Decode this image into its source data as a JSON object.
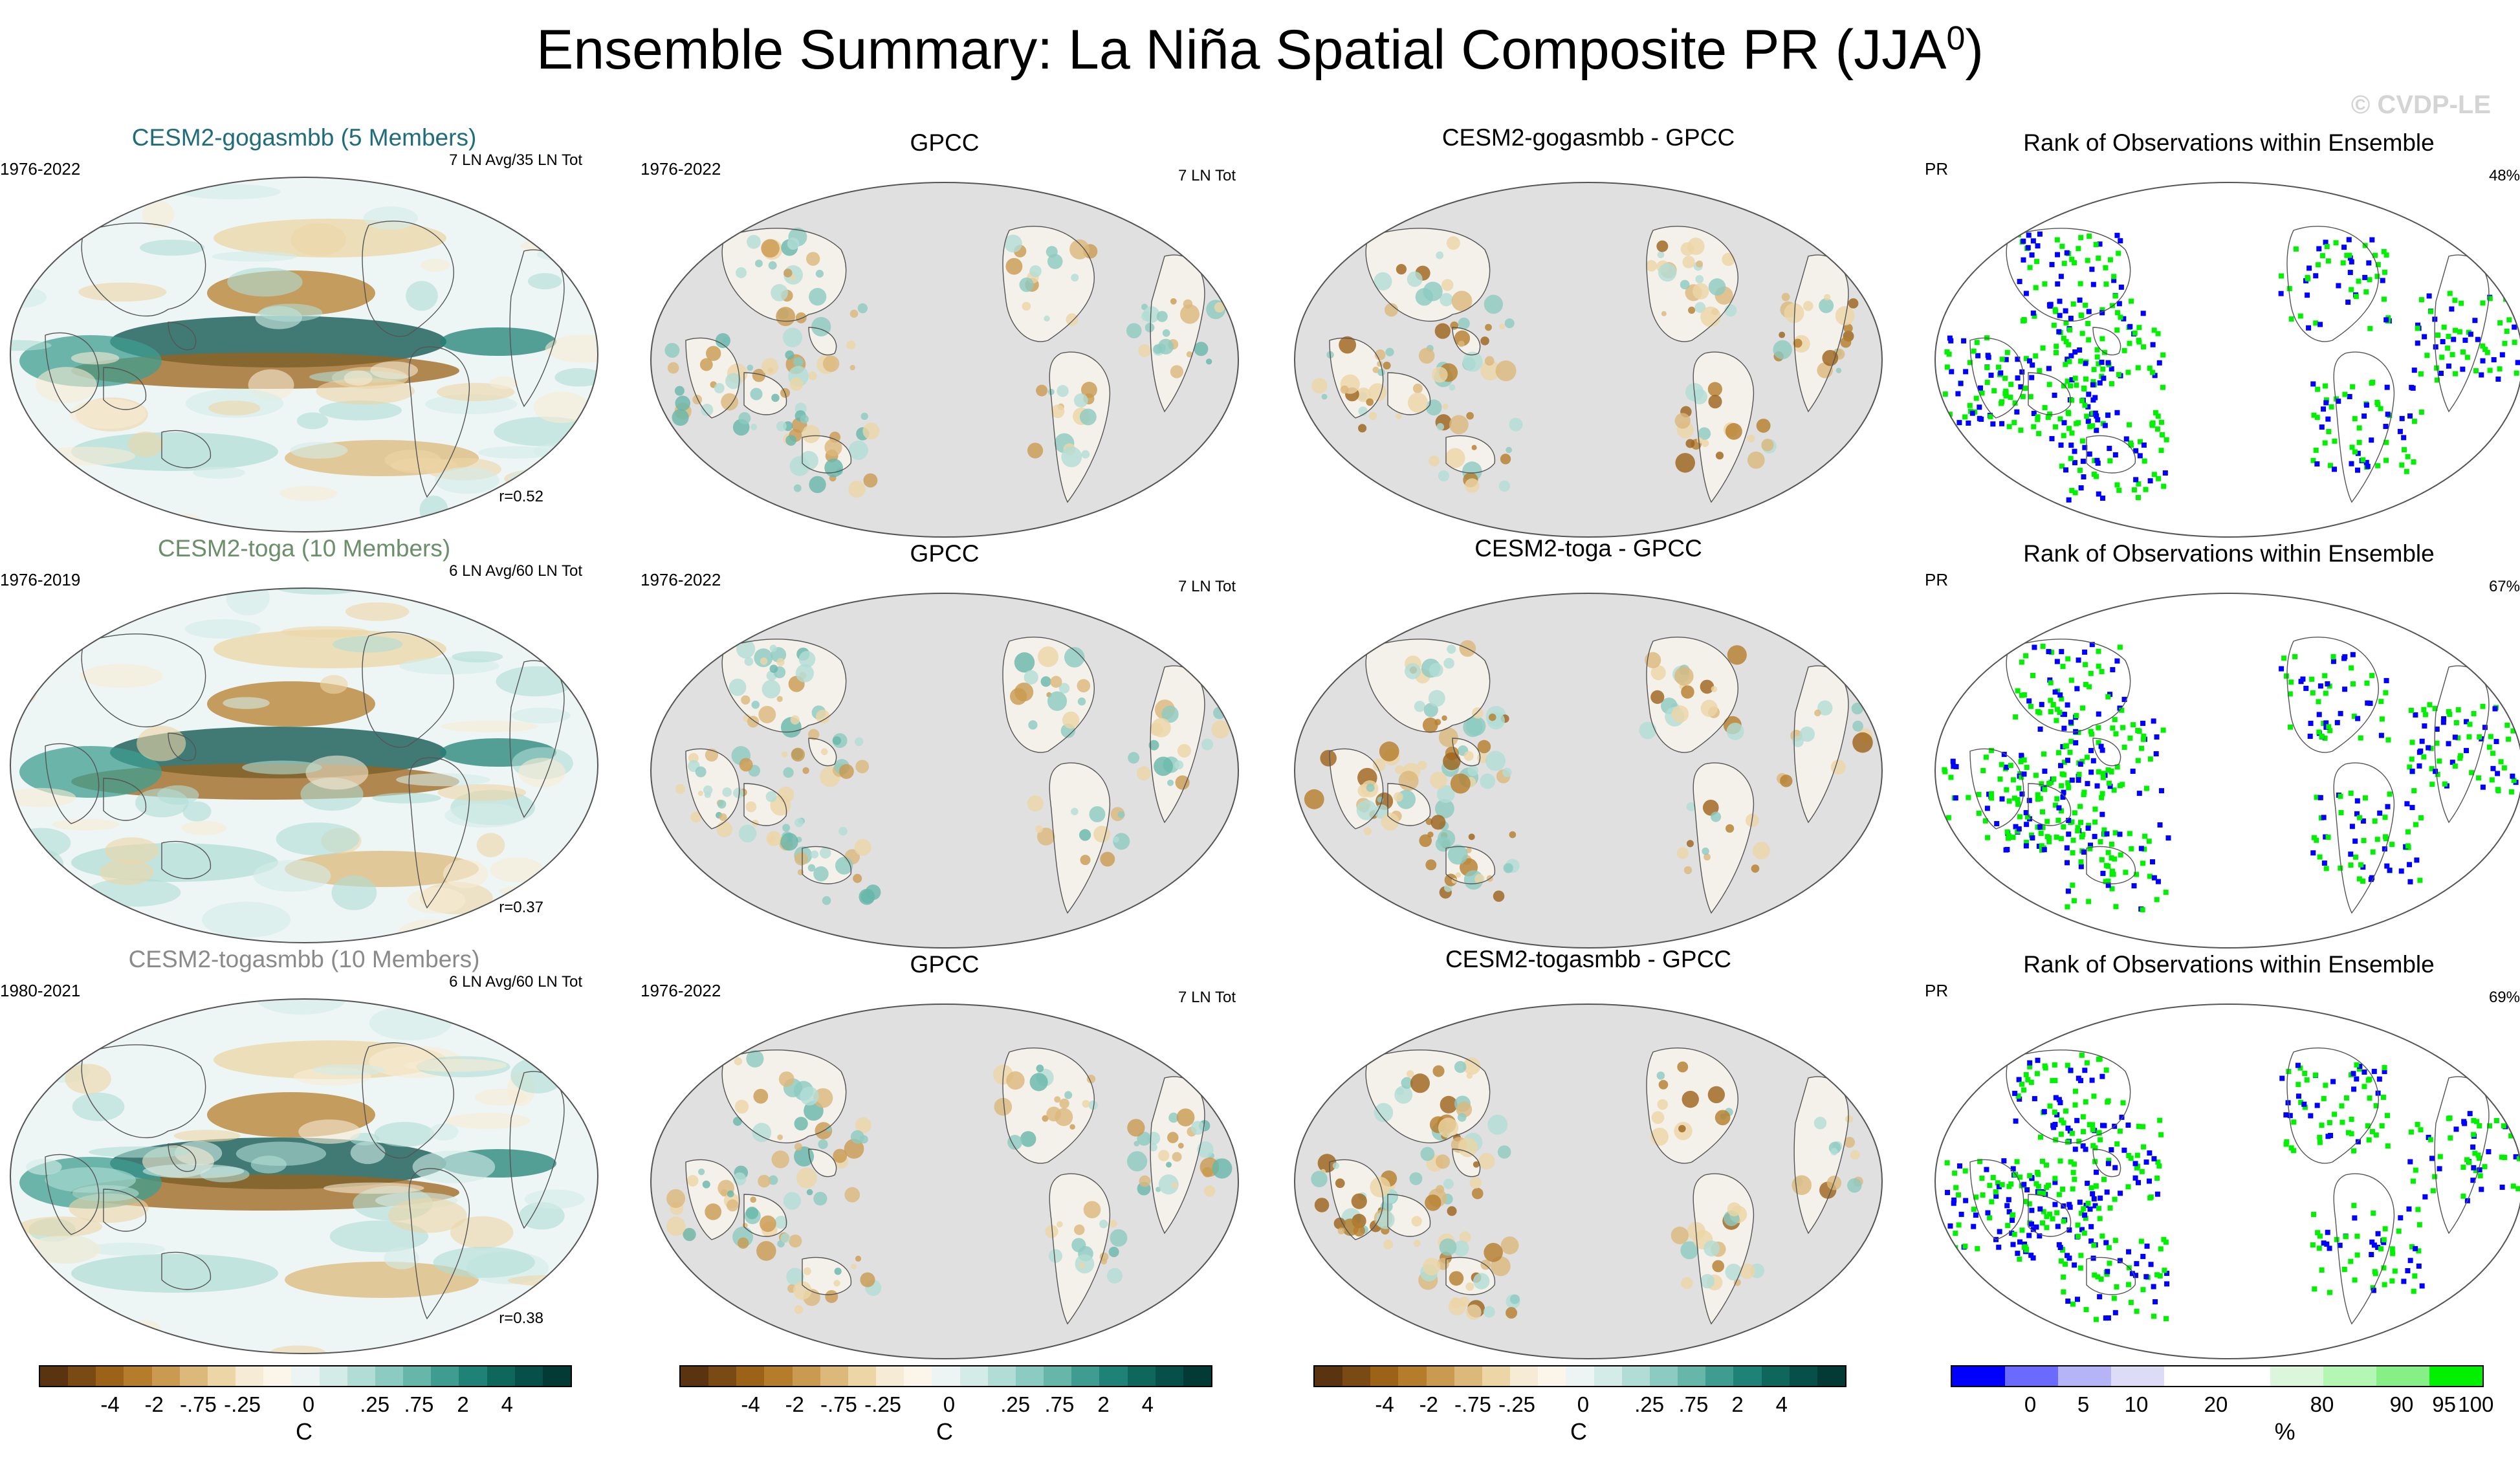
{
  "title": "Ensemble Summary: La Niña Spatial Composite PR (JJA",
  "title_superscript": "0",
  "title_close": ")",
  "credit": "© CVDP-LE",
  "colors": {
    "model_1_title": "#1f6d7a",
    "model_2_title": "#6a8f6a",
    "model_3_title": "#8a8a8a",
    "land_missing": "#e0e0e0",
    "rank_low": "#0000ff",
    "rank_high": "#00f000"
  },
  "rows": [
    {
      "model": {
        "title": "CESM2-gogasmbb (5 Members)",
        "period": "1976-2022",
        "count": "7 LN Avg/35 LN Tot",
        "corr": "r=0.52"
      },
      "obs": {
        "title": "GPCC",
        "period": "1976-2022",
        "count": "7 LN Tot"
      },
      "diff": {
        "title": "CESM2-gogasmbb - GPCC"
      },
      "rank": {
        "title": "Rank of Observations within Ensemble",
        "var": "PR",
        "pct": "48%"
      }
    },
    {
      "model": {
        "title": "CESM2-toga (10 Members)",
        "period": "1976-2019",
        "count": "6 LN Avg/60 LN Tot",
        "corr": "r=0.37"
      },
      "obs": {
        "title": "GPCC",
        "period": "1976-2022",
        "count": "7 LN Tot"
      },
      "diff": {
        "title": "CESM2-toga - GPCC"
      },
      "rank": {
        "title": "Rank of Observations within Ensemble",
        "var": "PR",
        "pct": "67%"
      }
    },
    {
      "model": {
        "title": "CESM2-togasmbb (10 Members)",
        "period": "1980-2021",
        "count": "6 LN Avg/60 LN Tot",
        "corr": "r=0.38"
      },
      "obs": {
        "title": "GPCC",
        "period": "1976-2022",
        "count": "7 LN Tot"
      },
      "diff": {
        "title": "CESM2-togasmbb - GPCC"
      },
      "rank": {
        "title": "Rank of Observations within Ensemble",
        "var": "PR",
        "pct": "69%"
      }
    }
  ],
  "chart_data": {
    "type": "heatmap",
    "title": "Ensemble Summary: La Niña Spatial Composite PR (JJA0)",
    "projection": "global ellipse, Pacific-centred",
    "colorbars": [
      {
        "unit": "C",
        "ticks": [
          "-4",
          "-2",
          "-.75",
          "-.25",
          "0",
          ".25",
          ".75",
          "2",
          "4"
        ],
        "colors": [
          "#5a3410",
          "#7a4a14",
          "#9c6218",
          "#b57d2b",
          "#c99a4f",
          "#dcb87a",
          "#ecd6a6",
          "#f6ebd4",
          "#fbf5ea",
          "#ecf5f4",
          "#d3ece8",
          "#b1ddd6",
          "#8ccbc1",
          "#66b6aa",
          "#3e9d90",
          "#1f8276",
          "#0f675c",
          "#07504a",
          "#033a36"
        ]
      },
      {
        "unit": "C",
        "ticks": [
          "-4",
          "-2",
          "-.75",
          "-.25",
          "0",
          ".25",
          ".75",
          "2",
          "4"
        ],
        "colors": [
          "#5a3410",
          "#7a4a14",
          "#9c6218",
          "#b57d2b",
          "#c99a4f",
          "#dcb87a",
          "#ecd6a6",
          "#f6ebd4",
          "#fbf5ea",
          "#ecf5f4",
          "#d3ece8",
          "#b1ddd6",
          "#8ccbc1",
          "#66b6aa",
          "#3e9d90",
          "#1f8276",
          "#0f675c",
          "#07504a",
          "#033a36"
        ]
      },
      {
        "unit": "C",
        "ticks": [
          "-4",
          "-2",
          "-.75",
          "-.25",
          "0",
          ".25",
          ".75",
          "2",
          "4"
        ],
        "colors": [
          "#5a3410",
          "#7a4a14",
          "#9c6218",
          "#b57d2b",
          "#c99a4f",
          "#dcb87a",
          "#ecd6a6",
          "#f6ebd4",
          "#fbf5ea",
          "#ecf5f4",
          "#d3ece8",
          "#b1ddd6",
          "#8ccbc1",
          "#66b6aa",
          "#3e9d90",
          "#1f8276",
          "#0f675c",
          "#07504a",
          "#033a36"
        ]
      },
      {
        "unit": "%",
        "ticks": [
          "0",
          "5",
          "10",
          "20",
          "80",
          "90",
          "95",
          "100"
        ],
        "colors": [
          "#0000ff",
          "#6a6aff",
          "#b4b4f6",
          "#dcdcf6",
          "#ffffff",
          "#ffffff",
          "#dcf6dc",
          "#b4f6b4",
          "#86f086",
          "#00f000"
        ]
      }
    ]
  }
}
